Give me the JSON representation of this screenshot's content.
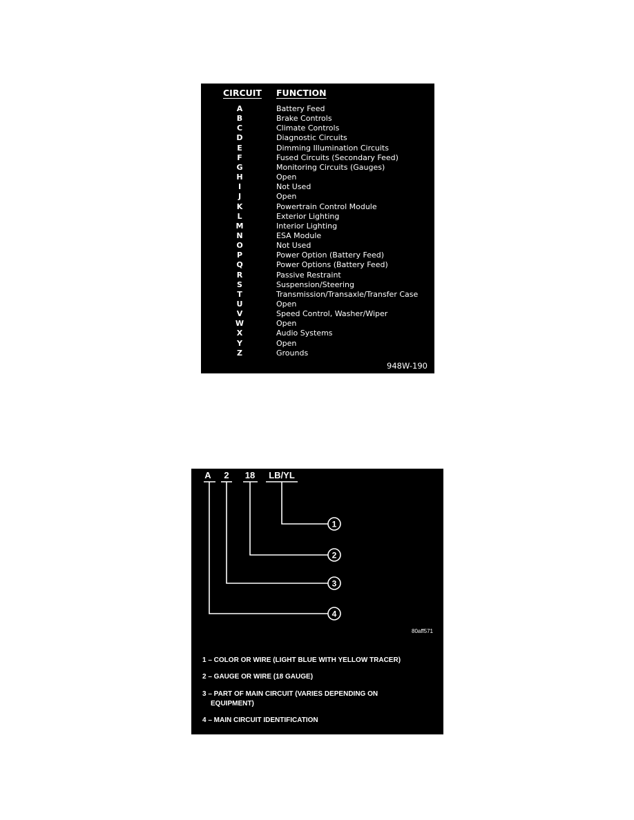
{
  "circuit_table": {
    "header_circuit": "CIRCUIT",
    "header_function": "FUNCTION",
    "rows": [
      {
        "circuit": "A",
        "function": "Battery Feed"
      },
      {
        "circuit": "B",
        "function": "Brake Controls"
      },
      {
        "circuit": "C",
        "function": "Climate Controls"
      },
      {
        "circuit": "D",
        "function": "Diagnostic Circuits"
      },
      {
        "circuit": "E",
        "function": "Dimming Illumination Circuits"
      },
      {
        "circuit": "F",
        "function": "Fused Circuits (Secondary Feed)"
      },
      {
        "circuit": "G",
        "function": "Monitoring Circuits (Gauges)"
      },
      {
        "circuit": "H",
        "function": "Open"
      },
      {
        "circuit": "I",
        "function": "Not Used"
      },
      {
        "circuit": "J",
        "function": "Open"
      },
      {
        "circuit": "K",
        "function": "Powertrain Control Module"
      },
      {
        "circuit": "L",
        "function": "Exterior Lighting"
      },
      {
        "circuit": "M",
        "function": "Interior Lighting"
      },
      {
        "circuit": "N",
        "function": "ESA Module"
      },
      {
        "circuit": "O",
        "function": "Not Used"
      },
      {
        "circuit": "P",
        "function": "Power Option (Battery Feed)"
      },
      {
        "circuit": "Q",
        "function": "Power Options (Battery Feed)"
      },
      {
        "circuit": "R",
        "function": "Passive Restraint"
      },
      {
        "circuit": "S",
        "function": "Suspension/Steering"
      },
      {
        "circuit": "T",
        "function": "Transmission/Transaxle/Transfer Case"
      },
      {
        "circuit": "U",
        "function": "Open"
      },
      {
        "circuit": "V",
        "function": "Speed Control, Washer/Wiper"
      },
      {
        "circuit": "W",
        "function": "Open"
      },
      {
        "circuit": "X",
        "function": "Audio Systems"
      },
      {
        "circuit": "Y",
        "function": "Open"
      },
      {
        "circuit": "Z",
        "function": "Grounds"
      }
    ],
    "figure_code": "948W-190"
  },
  "wire_code_diagram": {
    "parts": [
      "A",
      "2",
      "18",
      "LB/YL"
    ],
    "callouts": [
      "1",
      "2",
      "3",
      "4"
    ],
    "figure_code": "80aff571",
    "legend": [
      "1 – COLOR OR WIRE (LIGHT BLUE WITH YELLOW TRACER)",
      "2 – GAUGE OR WIRE (18 GAUGE)",
      "3 – PART OF MAIN CIRCUIT (VARIES DEPENDING ON",
      "EQUIPMENT)",
      "4 – MAIN CIRCUIT IDENTIFICATION"
    ]
  }
}
